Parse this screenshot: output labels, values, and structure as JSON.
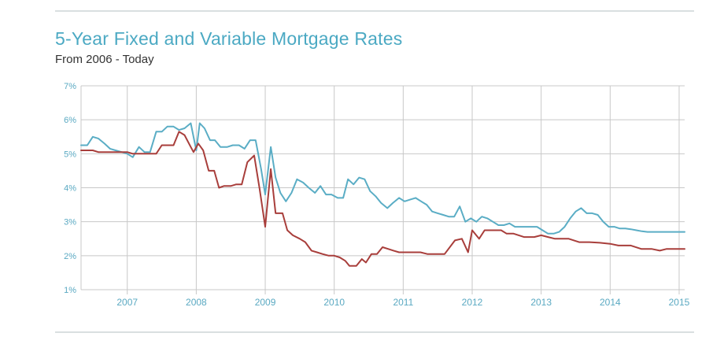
{
  "header": {
    "title": "5-Year Fixed and Variable Mortgage Rates",
    "subtitle": "From 2006 - Today"
  },
  "colors": {
    "fixed": "#5aadc5",
    "variable": "#a83e3b",
    "grid": "#c8c8c8",
    "axis_text": "#5aa9c2"
  },
  "chart_data": {
    "type": "line",
    "title": "5-Year Fixed and Variable Mortgage Rates",
    "subtitle": "From 2006 - Today",
    "xlabel": "",
    "ylabel": "",
    "xlim": [
      2006.33,
      2015.08
    ],
    "ylim": [
      1,
      7
    ],
    "y_ticks": [
      "1%",
      "2%",
      "3%",
      "4%",
      "5%",
      "6%",
      "7%"
    ],
    "y_tick_values": [
      1,
      2,
      3,
      4,
      5,
      6,
      7
    ],
    "x_ticks": [
      "2007",
      "2008",
      "2009",
      "2010",
      "2011",
      "2012",
      "2013",
      "2014",
      "2015"
    ],
    "x_tick_values": [
      2007,
      2008,
      2009,
      2010,
      2011,
      2012,
      2013,
      2014,
      2015
    ],
    "grid": true,
    "legend": "none",
    "series": [
      {
        "name": "5-Year Fixed",
        "color": "#5aadc5",
        "points": [
          [
            2006.33,
            5.25
          ],
          [
            2006.42,
            5.25
          ],
          [
            2006.5,
            5.5
          ],
          [
            2006.58,
            5.45
          ],
          [
            2006.67,
            5.3
          ],
          [
            2006.75,
            5.15
          ],
          [
            2006.83,
            5.1
          ],
          [
            2006.92,
            5.05
          ],
          [
            2007.0,
            5.0
          ],
          [
            2007.08,
            4.9
          ],
          [
            2007.17,
            5.2
          ],
          [
            2007.25,
            5.05
          ],
          [
            2007.33,
            5.05
          ],
          [
            2007.42,
            5.65
          ],
          [
            2007.5,
            5.65
          ],
          [
            2007.58,
            5.8
          ],
          [
            2007.67,
            5.8
          ],
          [
            2007.75,
            5.7
          ],
          [
            2007.83,
            5.75
          ],
          [
            2007.92,
            5.9
          ],
          [
            2008.0,
            5.1
          ],
          [
            2008.05,
            5.9
          ],
          [
            2008.12,
            5.75
          ],
          [
            2008.2,
            5.4
          ],
          [
            2008.27,
            5.4
          ],
          [
            2008.35,
            5.2
          ],
          [
            2008.45,
            5.2
          ],
          [
            2008.53,
            5.25
          ],
          [
            2008.62,
            5.25
          ],
          [
            2008.7,
            5.15
          ],
          [
            2008.78,
            5.4
          ],
          [
            2008.86,
            5.4
          ],
          [
            2008.94,
            4.55
          ],
          [
            2009.0,
            3.8
          ],
          [
            2009.08,
            5.2
          ],
          [
            2009.15,
            4.3
          ],
          [
            2009.22,
            3.85
          ],
          [
            2009.3,
            3.6
          ],
          [
            2009.38,
            3.85
          ],
          [
            2009.46,
            4.25
          ],
          [
            2009.55,
            4.15
          ],
          [
            2009.63,
            4.0
          ],
          [
            2009.72,
            3.85
          ],
          [
            2009.8,
            4.05
          ],
          [
            2009.88,
            3.8
          ],
          [
            2009.96,
            3.8
          ],
          [
            2010.05,
            3.7
          ],
          [
            2010.13,
            3.7
          ],
          [
            2010.2,
            4.25
          ],
          [
            2010.28,
            4.1
          ],
          [
            2010.36,
            4.3
          ],
          [
            2010.44,
            4.25
          ],
          [
            2010.52,
            3.9
          ],
          [
            2010.6,
            3.75
          ],
          [
            2010.68,
            3.55
          ],
          [
            2010.77,
            3.4
          ],
          [
            2010.85,
            3.55
          ],
          [
            2010.94,
            3.7
          ],
          [
            2011.02,
            3.6
          ],
          [
            2011.1,
            3.65
          ],
          [
            2011.18,
            3.7
          ],
          [
            2011.26,
            3.6
          ],
          [
            2011.34,
            3.5
          ],
          [
            2011.42,
            3.3
          ],
          [
            2011.5,
            3.25
          ],
          [
            2011.58,
            3.2
          ],
          [
            2011.66,
            3.15
          ],
          [
            2011.74,
            3.15
          ],
          [
            2011.82,
            3.45
          ],
          [
            2011.9,
            3.0
          ],
          [
            2011.98,
            3.1
          ],
          [
            2012.06,
            3.0
          ],
          [
            2012.14,
            3.15
          ],
          [
            2012.22,
            3.1
          ],
          [
            2012.3,
            3.0
          ],
          [
            2012.38,
            2.9
          ],
          [
            2012.46,
            2.9
          ],
          [
            2012.54,
            2.95
          ],
          [
            2012.62,
            2.85
          ],
          [
            2012.7,
            2.85
          ],
          [
            2012.78,
            2.85
          ],
          [
            2012.86,
            2.85
          ],
          [
            2012.94,
            2.85
          ],
          [
            2013.02,
            2.75
          ],
          [
            2013.1,
            2.65
          ],
          [
            2013.18,
            2.65
          ],
          [
            2013.26,
            2.7
          ],
          [
            2013.34,
            2.85
          ],
          [
            2013.42,
            3.1
          ],
          [
            2013.5,
            3.3
          ],
          [
            2013.58,
            3.4
          ],
          [
            2013.66,
            3.25
          ],
          [
            2013.74,
            3.25
          ],
          [
            2013.82,
            3.2
          ],
          [
            2013.9,
            3.0
          ],
          [
            2013.98,
            2.85
          ],
          [
            2014.06,
            2.85
          ],
          [
            2014.14,
            2.8
          ],
          [
            2014.22,
            2.8
          ],
          [
            2014.3,
            2.78
          ],
          [
            2014.38,
            2.75
          ],
          [
            2014.46,
            2.72
          ],
          [
            2014.54,
            2.7
          ],
          [
            2014.62,
            2.7
          ],
          [
            2014.7,
            2.7
          ],
          [
            2014.78,
            2.7
          ],
          [
            2014.86,
            2.7
          ],
          [
            2015.08,
            2.7
          ]
        ]
      },
      {
        "name": "Variable",
        "color": "#a83e3b",
        "points": [
          [
            2006.33,
            5.1
          ],
          [
            2006.5,
            5.1
          ],
          [
            2006.58,
            5.05
          ],
          [
            2006.75,
            5.05
          ],
          [
            2006.92,
            5.05
          ],
          [
            2007.0,
            5.05
          ],
          [
            2007.08,
            5.0
          ],
          [
            2007.25,
            5.0
          ],
          [
            2007.42,
            5.0
          ],
          [
            2007.5,
            5.25
          ],
          [
            2007.67,
            5.25
          ],
          [
            2007.75,
            5.65
          ],
          [
            2007.83,
            5.55
          ],
          [
            2007.92,
            5.2
          ],
          [
            2007.96,
            5.05
          ],
          [
            2008.03,
            5.3
          ],
          [
            2008.1,
            5.1
          ],
          [
            2008.18,
            4.5
          ],
          [
            2008.26,
            4.5
          ],
          [
            2008.33,
            4.0
          ],
          [
            2008.4,
            4.05
          ],
          [
            2008.5,
            4.05
          ],
          [
            2008.58,
            4.1
          ],
          [
            2008.66,
            4.1
          ],
          [
            2008.74,
            4.75
          ],
          [
            2008.84,
            4.95
          ],
          [
            2008.92,
            3.95
          ],
          [
            2009.0,
            2.85
          ],
          [
            2009.08,
            4.55
          ],
          [
            2009.15,
            3.25
          ],
          [
            2009.25,
            3.25
          ],
          [
            2009.32,
            2.75
          ],
          [
            2009.4,
            2.6
          ],
          [
            2009.5,
            2.5
          ],
          [
            2009.58,
            2.4
          ],
          [
            2009.67,
            2.15
          ],
          [
            2009.75,
            2.1
          ],
          [
            2009.83,
            2.05
          ],
          [
            2009.92,
            2.0
          ],
          [
            2010.0,
            2.0
          ],
          [
            2010.08,
            1.95
          ],
          [
            2010.16,
            1.85
          ],
          [
            2010.22,
            1.7
          ],
          [
            2010.32,
            1.7
          ],
          [
            2010.4,
            1.9
          ],
          [
            2010.46,
            1.8
          ],
          [
            2010.54,
            2.05
          ],
          [
            2010.62,
            2.05
          ],
          [
            2010.7,
            2.25
          ],
          [
            2010.78,
            2.2
          ],
          [
            2010.86,
            2.15
          ],
          [
            2010.94,
            2.1
          ],
          [
            2011.05,
            2.1
          ],
          [
            2011.25,
            2.1
          ],
          [
            2011.35,
            2.05
          ],
          [
            2011.45,
            2.05
          ],
          [
            2011.6,
            2.05
          ],
          [
            2011.75,
            2.45
          ],
          [
            2011.85,
            2.5
          ],
          [
            2011.94,
            2.1
          ],
          [
            2012.0,
            2.75
          ],
          [
            2012.1,
            2.5
          ],
          [
            2012.18,
            2.75
          ],
          [
            2012.3,
            2.75
          ],
          [
            2012.42,
            2.75
          ],
          [
            2012.5,
            2.65
          ],
          [
            2012.6,
            2.65
          ],
          [
            2012.75,
            2.55
          ],
          [
            2012.9,
            2.55
          ],
          [
            2013.0,
            2.6
          ],
          [
            2013.1,
            2.55
          ],
          [
            2013.2,
            2.5
          ],
          [
            2013.4,
            2.5
          ],
          [
            2013.55,
            2.4
          ],
          [
            2013.7,
            2.4
          ],
          [
            2013.85,
            2.38
          ],
          [
            2014.0,
            2.35
          ],
          [
            2014.12,
            2.3
          ],
          [
            2014.3,
            2.3
          ],
          [
            2014.45,
            2.2
          ],
          [
            2014.6,
            2.2
          ],
          [
            2014.72,
            2.15
          ],
          [
            2014.82,
            2.2
          ],
          [
            2014.95,
            2.2
          ],
          [
            2015.08,
            2.2
          ]
        ]
      }
    ]
  }
}
